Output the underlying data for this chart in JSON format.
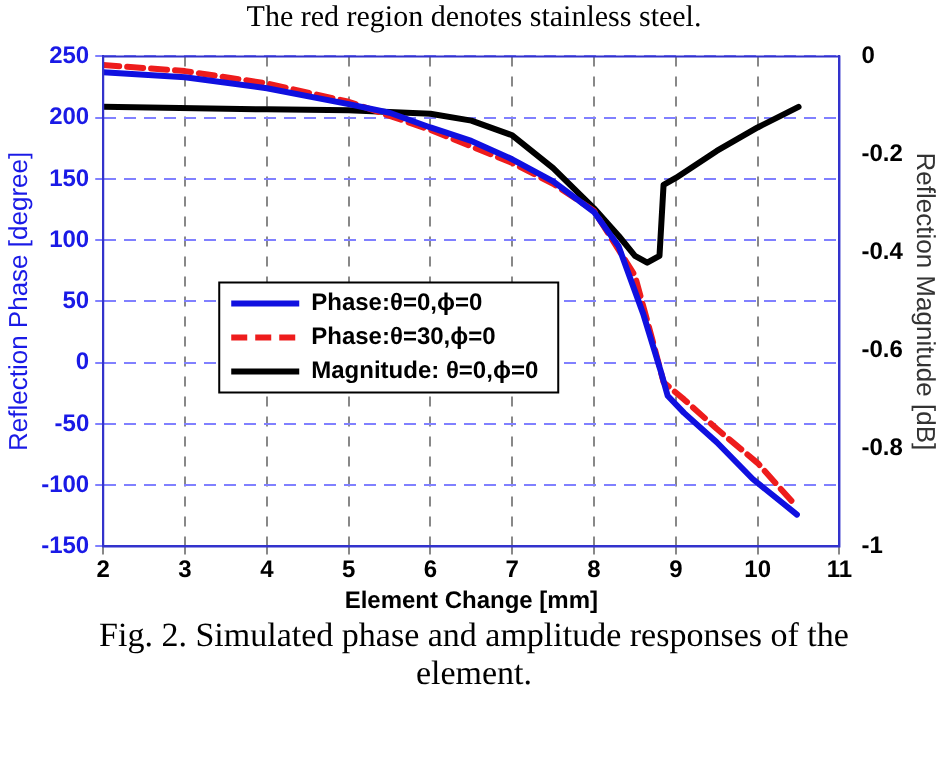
{
  "chart_data": {
    "type": "line",
    "xlabel": "Element Change [mm]",
    "ylabel": "Reflection Phase [degree]",
    "y2label": "Reflection Magnitude [dB]",
    "annotations": [
      "The red region denotes stainless steel.",
      "Fig. 2.  Simulated phase and amplitude responses of the element."
    ],
    "xlim": [
      2,
      11
    ],
    "xticks": [
      2,
      3,
      4,
      5,
      6,
      7,
      8,
      9,
      10,
      11
    ],
    "ylim": [
      -150,
      250
    ],
    "yticks": [
      -150,
      -100,
      -50,
      0,
      50,
      100,
      150,
      200,
      250
    ],
    "y2lim": [
      -1,
      0
    ],
    "y2ticks": [
      -1,
      -0.8,
      -0.6,
      -0.4,
      -0.2,
      0
    ],
    "grid": true,
    "legend": "bottom left",
    "marker": "none",
    "series": [
      {
        "name": "Phase:θ=0,ϕ=0",
        "color": "#1010e0",
        "line_style": "solid",
        "x": [
          2,
          3,
          4,
          5,
          5.5,
          6,
          6.5,
          7,
          7.5,
          8,
          8.3,
          8.6,
          8.82,
          8.9,
          9.1,
          9.5,
          9.94,
          10.48
        ],
        "values": [
          237,
          233,
          224,
          211,
          204,
          192,
          181,
          166,
          148,
          123,
          95,
          40,
          -8,
          -27,
          -41,
          -65,
          -95,
          -124
        ]
      },
      {
        "name": "Phase:θ=30,ϕ=0",
        "color": "#ee1c1c",
        "line_style": "dashed",
        "x": [
          2,
          3,
          4,
          5,
          6,
          7,
          7.5,
          8,
          8.5,
          8.7,
          8.85,
          9.1,
          9.5,
          10,
          10.47
        ],
        "values": [
          243,
          238,
          228,
          213,
          190,
          163,
          146,
          124,
          71,
          22,
          -16,
          -30,
          -54,
          -82,
          -117
        ]
      },
      {
        "name": "Magnitude: θ=0,ϕ=0",
        "color": "#000000",
        "line_style": "solid",
        "axis": "y2",
        "x": [
          2,
          4,
          5,
          6,
          6.5,
          7,
          7.5,
          8,
          8.3,
          8.5,
          8.65,
          8.8,
          8.85,
          9,
          9.5,
          10,
          10.5
        ],
        "values": [
          -0.103,
          -0.108,
          -0.11,
          -0.117,
          -0.131,
          -0.161,
          -0.228,
          -0.31,
          -0.366,
          -0.407,
          -0.421,
          -0.407,
          -0.262,
          -0.248,
          -0.193,
          -0.145,
          -0.103
        ]
      }
    ]
  }
}
